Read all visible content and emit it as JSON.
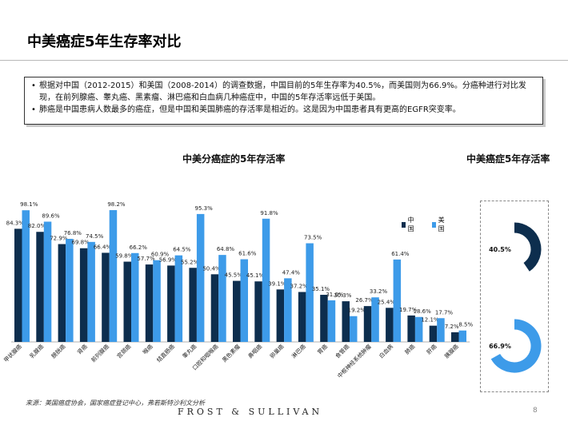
{
  "page": {
    "title": "中美癌症5年生存率对比",
    "bullets": [
      "根据对中国（2012-2015）和美国（2008-2014）的调查数据，中国目前的5年生存率为40.5%，而美国则为66.9%。分癌种进行对比发现，在前列腺癌、睾丸癌、黑素瘤、淋巴癌和白血病几种癌症中，中国的5年存活率远低于美国。",
      "肺癌是中国患病人数最多的癌症，但是中国和美国肺癌的存活率是相近的。这是因为中国患者具有更高的EGFR突变率。"
    ],
    "source": "来源：美国癌症协会，国家癌症登记中心，弗若斯特沙利文分析",
    "brand": "FROST & SULLIVAN",
    "page_number": "8"
  },
  "colors": {
    "china": "#0d2e4e",
    "usa": "#3d9be9",
    "track": "#ffffff"
  },
  "chart_data": [
    {
      "type": "bar",
      "title": "中美分癌症的5年存活率",
      "categories": [
        "甲状腺癌",
        "乳腺癌",
        "膀胱癌",
        "肾癌",
        "前列腺癌",
        "宫颈癌",
        "喉癌",
        "结直肠癌",
        "睾丸癌",
        "口腔和咽喉癌",
        "黑色素瘤",
        "鼻咽癌",
        "卵巢癌",
        "淋巴癌",
        "胃癌",
        "食管癌",
        "中枢神经系统肿瘤",
        "白血病",
        "肺癌",
        "肝癌",
        "胰腺癌"
      ],
      "series": [
        {
          "name": "中国",
          "values": [
            84.3,
            82.0,
            72.9,
            69.8,
            66.4,
            59.8,
            57.7,
            56.9,
            55.2,
            50.4,
            45.5,
            45.1,
            39.1,
            37.2,
            35.1,
            30.3,
            26.7,
            25.4,
            19.7,
            12.1,
            7.2
          ]
        },
        {
          "name": "美国",
          "values": [
            98.1,
            89.6,
            76.8,
            74.5,
            98.2,
            66.2,
            60.9,
            64.5,
            95.3,
            64.8,
            61.6,
            91.8,
            47.4,
            73.5,
            31.0,
            19.2,
            33.2,
            61.4,
            18.6,
            17.7,
            8.5
          ]
        }
      ],
      "ylim": [
        0,
        100
      ],
      "legend": "top-right",
      "grid": false
    },
    {
      "type": "pie",
      "title": "中美癌症5年存活率",
      "series": [
        {
          "name": "中国",
          "value": 40.5,
          "label": "40.5%"
        },
        {
          "name": "美国",
          "value": 66.9,
          "label": "66.9%"
        }
      ]
    }
  ]
}
